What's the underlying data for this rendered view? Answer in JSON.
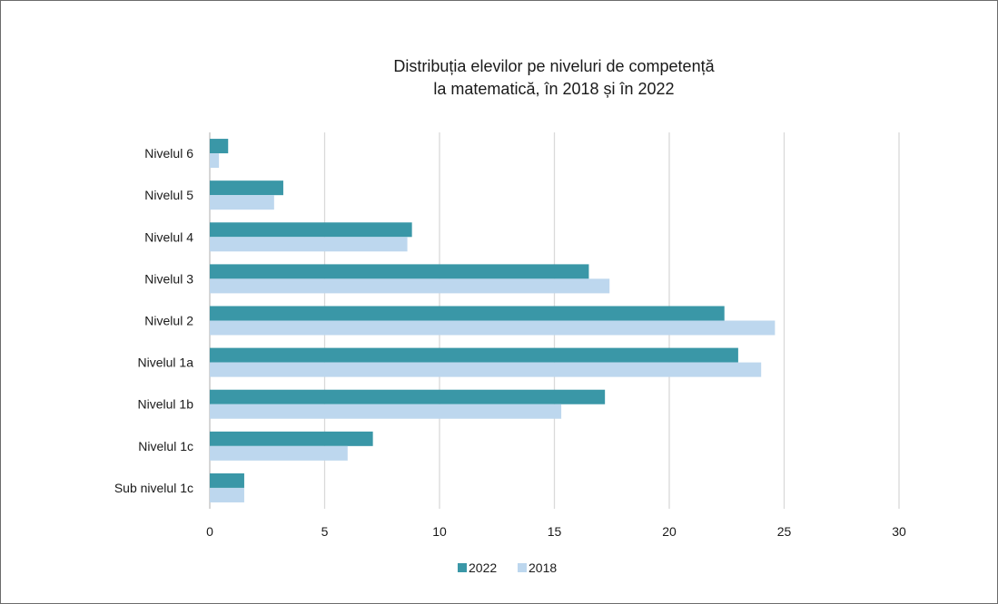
{
  "chart_data": {
    "type": "bar",
    "orientation": "horizontal",
    "title_lines": [
      "Distribuția elevilor pe niveluri de competență",
      "la matematică, în 2018 și în 2022"
    ],
    "categories": [
      "Nivelul 6",
      "Nivelul 5",
      "Nivelul 4",
      "Nivelul 3",
      "Nivelul 2",
      "Nivelul 1a",
      "Nivelul 1b",
      "Nivelul 1c",
      "Sub nivelul 1c"
    ],
    "series": [
      {
        "name": "2022",
        "color": "#3a97a7",
        "values": [
          0.8,
          3.2,
          8.8,
          16.5,
          22.4,
          23.0,
          17.2,
          7.1,
          1.5
        ]
      },
      {
        "name": "2018",
        "color": "#bdd7ee",
        "values": [
          0.4,
          2.8,
          8.6,
          17.4,
          24.6,
          24.0,
          15.3,
          6.0,
          1.5
        ]
      }
    ],
    "xlim": [
      0,
      30
    ],
    "xticks": [
      0,
      5,
      10,
      15,
      20,
      25,
      30
    ],
    "grid": true,
    "legend_position": "bottom"
  }
}
